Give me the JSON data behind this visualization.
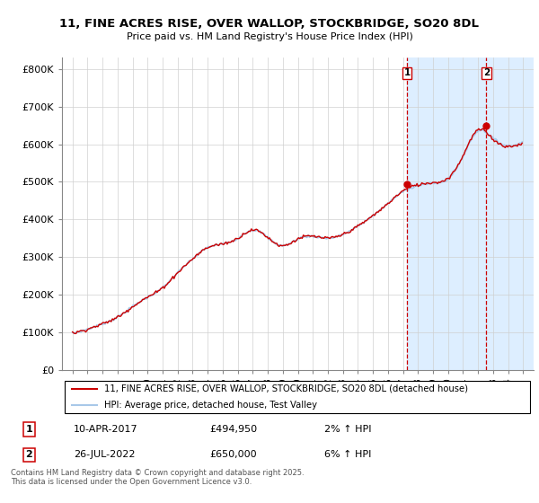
{
  "title": "11, FINE ACRES RISE, OVER WALLOP, STOCKBRIDGE, SO20 8DL",
  "subtitle": "Price paid vs. HM Land Registry's House Price Index (HPI)",
  "property_label": "11, FINE ACRES RISE, OVER WALLOP, STOCKBRIDGE, SO20 8DL (detached house)",
  "hpi_label": "HPI: Average price, detached house, Test Valley",
  "copyright": "Contains HM Land Registry data © Crown copyright and database right 2025.\nThis data is licensed under the Open Government Licence v3.0.",
  "sale1_date": "10-APR-2017",
  "sale1_price": 494950,
  "sale1_hpi": "2% ↑ HPI",
  "sale2_date": "26-JUL-2022",
  "sale2_price": 650000,
  "sale2_hpi": "6% ↑ HPI",
  "sale1_year": 2017.27,
  "sale2_year": 2022.56,
  "hpi_color": "#a8c8e8",
  "property_color": "#CC0000",
  "bg_color": "#ffffff",
  "highlight_bg": "#ddeeff",
  "ylim": [
    0,
    830000
  ],
  "yticks": [
    0,
    100000,
    200000,
    300000,
    400000,
    500000,
    600000,
    700000,
    800000
  ],
  "ytick_labels": [
    "£0",
    "£100K",
    "£200K",
    "£300K",
    "£400K",
    "£500K",
    "£600K",
    "£700K",
    "£800K"
  ],
  "xtick_years": [
    1995,
    1996,
    1997,
    1998,
    1999,
    2000,
    2001,
    2002,
    2003,
    2004,
    2005,
    2006,
    2007,
    2008,
    2009,
    2010,
    2011,
    2012,
    2013,
    2014,
    2015,
    2016,
    2017,
    2018,
    2019,
    2020,
    2021,
    2022,
    2023,
    2024,
    2025
  ],
  "hpi_values_yearly": [
    97000,
    108000,
    122000,
    140000,
    168000,
    193000,
    218000,
    258000,
    295000,
    325000,
    335000,
    350000,
    372000,
    352000,
    330000,
    348000,
    355000,
    350000,
    360000,
    382000,
    410000,
    442000,
    474000,
    490000,
    496000,
    508000,
    568000,
    636000,
    616000,
    596000,
    608000
  ],
  "prop_values_yearly": [
    97000,
    108000,
    122000,
    140000,
    168000,
    193000,
    218000,
    258000,
    295000,
    325000,
    335000,
    350000,
    372000,
    352000,
    330000,
    348000,
    355000,
    350000,
    360000,
    382000,
    410000,
    442000,
    476000,
    492000,
    498000,
    510000,
    570000,
    638000,
    614000,
    594000,
    606000
  ]
}
